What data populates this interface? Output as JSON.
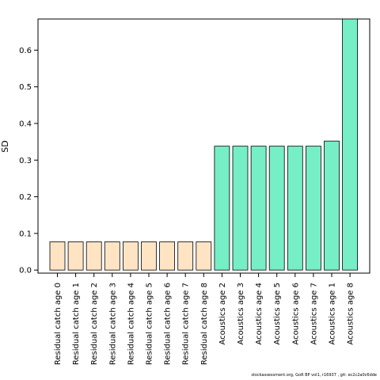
{
  "chart_data": {
    "type": "bar",
    "categories": [
      "Residual catch age 0",
      "Residual catch age 1",
      "Residual catch age 2",
      "Residual catch age 3",
      "Residual catch age 4",
      "Residual catch age 5",
      "Residual catch age 6",
      "Residual catch age 7",
      "Residual catch age 8",
      "Acoustics age 2",
      "Acoustics age 3",
      "Acoustics age 4",
      "Acoustics age 5",
      "Acoustics age 6",
      "Acoustics age 7",
      "Acoustics age 1",
      "Acoustics age 8"
    ],
    "values": [
      0.077,
      0.077,
      0.077,
      0.077,
      0.077,
      0.077,
      0.077,
      0.077,
      0.077,
      0.338,
      0.338,
      0.338,
      0.338,
      0.338,
      0.338,
      0.352,
      0.685
    ],
    "group_colors": [
      "#FFE4C4",
      "#FFE4C4",
      "#FFE4C4",
      "#FFE4C4",
      "#FFE4C4",
      "#FFE4C4",
      "#FFE4C4",
      "#FFE4C4",
      "#FFE4C4",
      "#76EEC6",
      "#76EEC6",
      "#76EEC6",
      "#76EEC6",
      "#76EEC6",
      "#76EEC6",
      "#76EEC6",
      "#76EEC6"
    ],
    "ylabel": "SD",
    "xlabel": "",
    "ylim": [
      -0.004,
      0.685
    ],
    "yticks": [
      0.0,
      0.1,
      0.2,
      0.3,
      0.4,
      0.5,
      0.6
    ],
    "ytick_labels": [
      "0.0",
      "0.1",
      "0.2",
      "0.3",
      "0.4",
      "0.5",
      "0.6"
    ],
    "grid": false
  },
  "footer": "stockassessment.org, GoR BP vol1, r16937 , git: ec2c2a0c6dde"
}
